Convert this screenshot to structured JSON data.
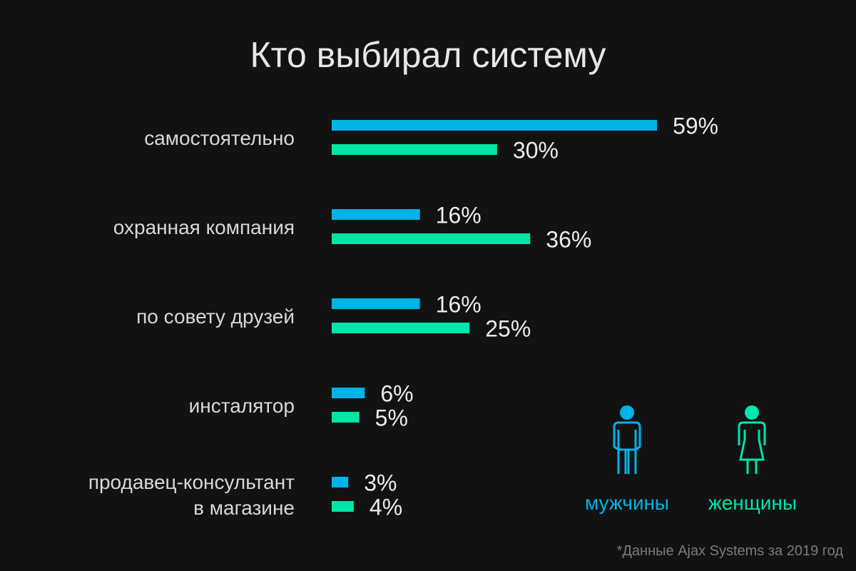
{
  "title": "Кто выбирал систему",
  "footnote": "*Данные Ajax Systems за 2019 год",
  "colors": {
    "men": "#00b3e6",
    "women": "#00e5a8"
  },
  "legend": {
    "men": {
      "label": "мужчины",
      "icon": "man-icon"
    },
    "women": {
      "label": "женщины",
      "icon": "woman-icon"
    }
  },
  "chart_data": {
    "type": "bar",
    "orientation": "horizontal",
    "title": "Кто выбирал систему",
    "categories": [
      [
        "самостоятельно"
      ],
      [
        "охранная компания"
      ],
      [
        "по совету друзей"
      ],
      [
        "инсталятор"
      ],
      [
        "продавец-консультант",
        "в магазине"
      ]
    ],
    "series": [
      {
        "name": "мужчины",
        "values": [
          59,
          16,
          16,
          6,
          3
        ]
      },
      {
        "name": "женщины",
        "values": [
          30,
          36,
          25,
          5,
          4
        ]
      }
    ],
    "value_labels": [
      [
        "59%",
        "16%",
        "16%",
        "6%",
        "3%"
      ],
      [
        "30%",
        "36%",
        "25%",
        "5%",
        "4%"
      ]
    ],
    "unit": "%",
    "grid": false,
    "legend_position": "bottom-right"
  }
}
